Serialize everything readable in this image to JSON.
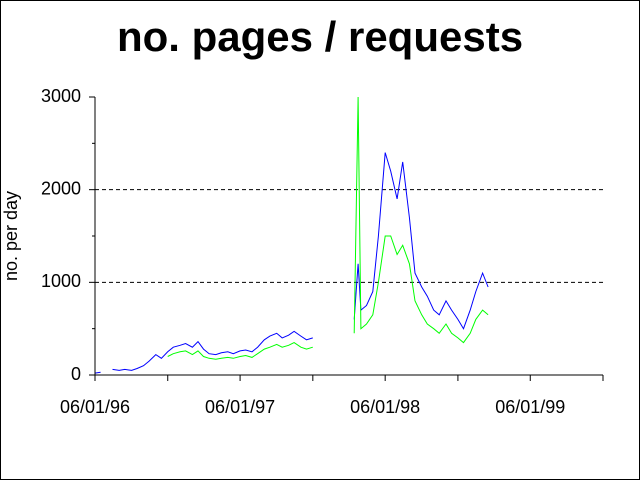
{
  "chart_data": {
    "type": "line",
    "title": "no. pages / requests",
    "y_label": "no. per day",
    "x": [
      "06/01/96",
      "06/15/96",
      "07/01/96",
      "07/15/96",
      "08/01/96",
      "08/15/96",
      "09/01/96",
      "09/15/96",
      "10/01/96",
      "10/15/96",
      "11/01/96",
      "11/15/96",
      "12/01/96",
      "12/15/96",
      "01/01/97",
      "01/15/97",
      "02/01/97",
      "02/15/97",
      "03/01/97",
      "03/15/97",
      "04/01/97",
      "04/15/97",
      "05/01/97",
      "05/15/97",
      "06/01/97",
      "06/15/97",
      "07/01/97",
      "07/15/97",
      "08/01/97",
      "08/15/97",
      "09/01/97",
      "09/15/97",
      "10/01/97",
      "10/15/97",
      "11/01/97",
      "11/15/97",
      "12/01/97",
      "12/15/97",
      "01/15/98",
      "02/15/98",
      "03/01/98",
      "03/15/98",
      "03/25/98",
      "04/01/98",
      "04/15/98",
      "05/01/98",
      "05/15/98",
      "06/01/98",
      "06/15/98",
      "07/01/98",
      "07/15/98",
      "08/01/98",
      "08/15/98",
      "09/01/98",
      "09/15/98",
      "10/01/98",
      "10/15/98",
      "11/01/98",
      "11/15/98",
      "12/01/98",
      "12/15/98",
      "01/01/99",
      "01/15/99",
      "02/01/99",
      "02/15/99"
    ],
    "series": [
      {
        "color": "#0000ff",
        "values": [
          20,
          30,
          null,
          60,
          50,
          60,
          50,
          70,
          100,
          150,
          220,
          180,
          250,
          300,
          320,
          340,
          300,
          360,
          280,
          230,
          220,
          240,
          250,
          230,
          260,
          270,
          250,
          300,
          380,
          420,
          450,
          400,
          430,
          470,
          420,
          380,
          400,
          null,
          null,
          700,
          null,
          600,
          1200,
          700,
          750,
          900,
          1500,
          2400,
          2200,
          1900,
          2300,
          1700,
          1100,
          950,
          850,
          700,
          650,
          800,
          700,
          600,
          500,
          700,
          900,
          1100,
          950
        ]
      },
      {
        "color": "#00ff00",
        "values": [
          null,
          null,
          null,
          null,
          null,
          null,
          null,
          null,
          null,
          null,
          null,
          null,
          200,
          230,
          250,
          260,
          220,
          260,
          200,
          180,
          170,
          180,
          190,
          180,
          200,
          210,
          190,
          230,
          280,
          300,
          330,
          300,
          320,
          350,
          300,
          280,
          300,
          null,
          null,
          400,
          null,
          450,
          3000,
          500,
          550,
          650,
          1000,
          1500,
          1500,
          1300,
          1400,
          1200,
          800,
          650,
          550,
          500,
          450,
          550,
          450,
          400,
          350,
          450,
          600,
          700,
          650
        ]
      }
    ],
    "xlim": [
      "06/01/96",
      "12/01/99"
    ],
    "xticks": [
      "06/01/96",
      "06/01/97",
      "06/01/98",
      "06/01/99"
    ],
    "xminorticks": [
      "12/01/96",
      "12/01/97",
      "12/01/98",
      "12/01/99"
    ],
    "ylim": [
      0,
      3000
    ],
    "yticks": [
      0,
      1000,
      2000,
      3000
    ],
    "yminorticks": [
      500,
      1500,
      2500
    ],
    "grid": true
  }
}
